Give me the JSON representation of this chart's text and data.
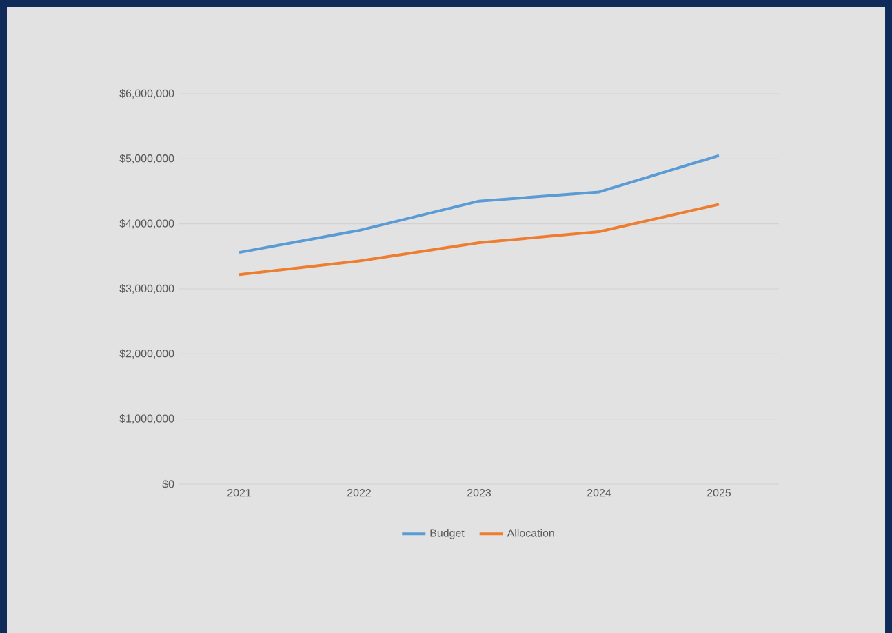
{
  "chart_data": {
    "type": "line",
    "categories": [
      "2021",
      "2022",
      "2023",
      "2024",
      "2025"
    ],
    "series": [
      {
        "name": "Budget",
        "color": "#5b9bd5",
        "values": [
          3560000,
          3900000,
          4350000,
          4490000,
          5050000
        ]
      },
      {
        "name": "Allocation",
        "color": "#ed7d31",
        "values": [
          3220000,
          3430000,
          3710000,
          3880000,
          4300000
        ]
      }
    ],
    "ylim": [
      0,
      6000000
    ],
    "yticks": [
      {
        "value": 0,
        "label": "$0"
      },
      {
        "value": 1000000,
        "label": "$1,000,000"
      },
      {
        "value": 2000000,
        "label": "$2,000,000"
      },
      {
        "value": 3000000,
        "label": "$3,000,000"
      },
      {
        "value": 4000000,
        "label": "$4,000,000"
      },
      {
        "value": 5000000,
        "label": "$5,000,000"
      },
      {
        "value": 6000000,
        "label": "$6,000,000"
      }
    ],
    "grid": "y",
    "legend": "bottom",
    "marker": "none",
    "line_style": "solid"
  }
}
